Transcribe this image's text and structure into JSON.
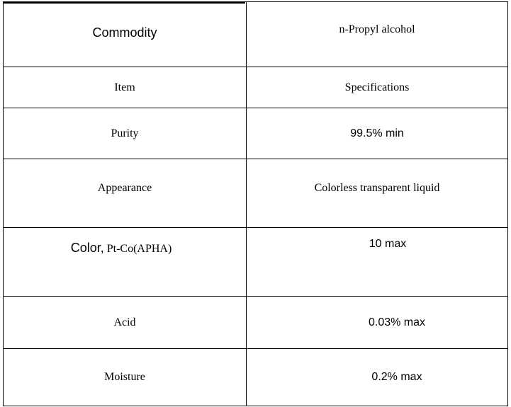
{
  "table": {
    "rows": [
      {
        "label": "Commodity",
        "value": "n-Propyl alcohol"
      },
      {
        "label": "Item",
        "value": "Specifications"
      },
      {
        "label": "Purity",
        "value": "99.5% min"
      },
      {
        "label": "Appearance",
        "value": "Colorless transparent liquid"
      },
      {
        "label_part1": "Color,",
        "label_part2": "Pt-Co(APHA)",
        "value": "10 max"
      },
      {
        "label": "Acid",
        "value": "0.03% max"
      },
      {
        "label": "Moisture",
        "value": "0.2% max"
      }
    ]
  }
}
